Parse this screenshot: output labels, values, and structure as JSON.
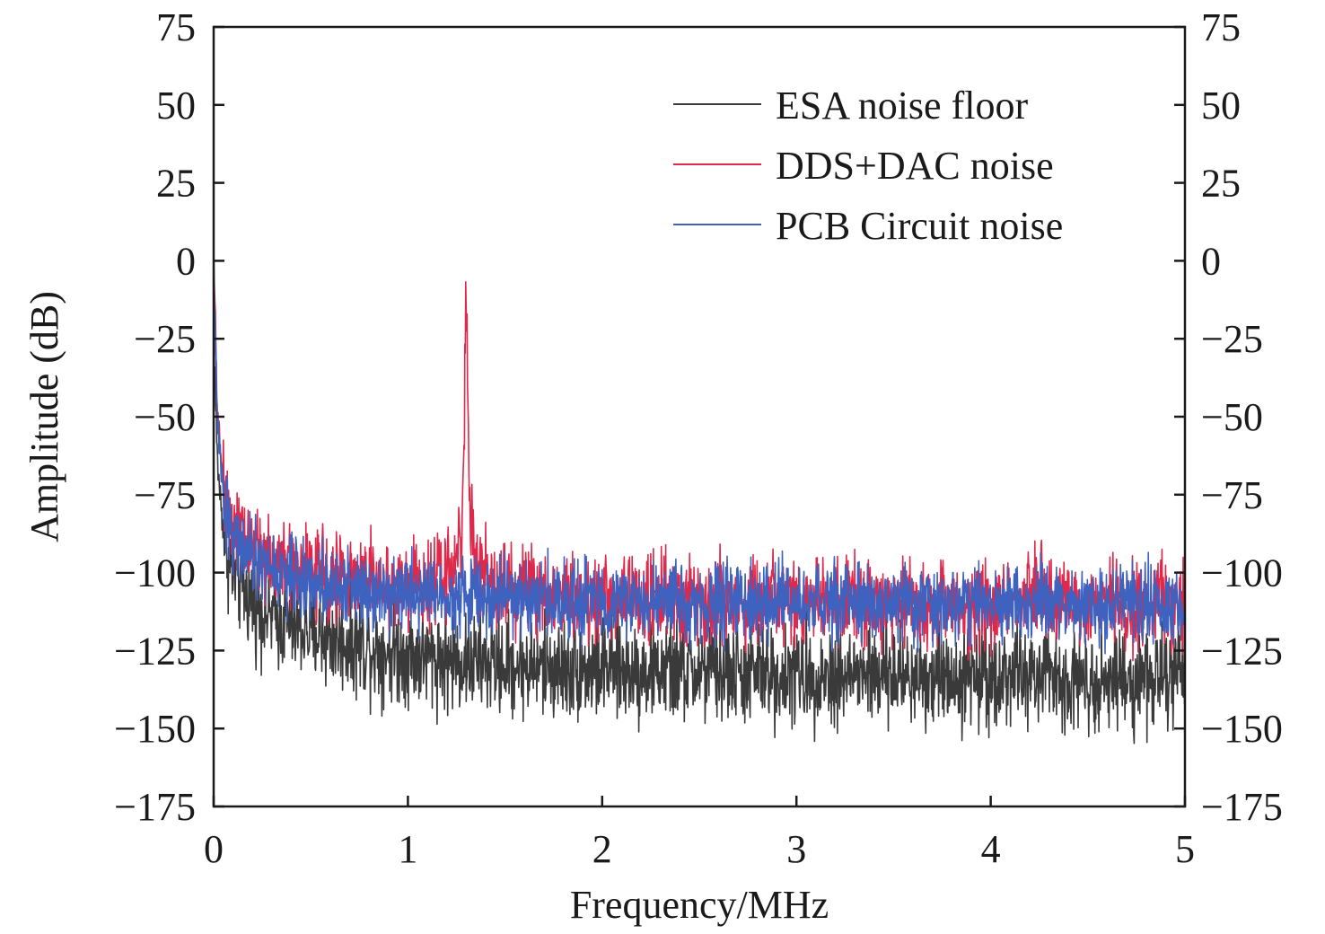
{
  "chart_data": {
    "type": "line",
    "title": "",
    "xlabel": "Frequency/MHz",
    "ylabel": "Amplitude (dB)",
    "xlim": [
      0,
      5
    ],
    "ylim": [
      -175,
      75
    ],
    "x_ticks": [
      0,
      1,
      2,
      3,
      4,
      5
    ],
    "x_tick_labels": [
      "0",
      "1",
      "2",
      "3",
      "4",
      "5"
    ],
    "y_ticks": [
      75,
      50,
      25,
      0,
      -25,
      -50,
      -75,
      -100,
      -125,
      -150,
      -175
    ],
    "y_tick_labels": [
      "75",
      "50",
      "25",
      "0",
      "−25",
      "−50",
      "−75",
      "−100",
      "−125",
      "−150",
      "−175"
    ],
    "right_y_tick_labels": [
      "75",
      "50",
      "25",
      "0",
      "−25",
      "−50",
      "−75",
      "−100",
      "−125",
      "−150",
      "−175"
    ],
    "grid": false,
    "legend_position": "top-right",
    "series": [
      {
        "name": "ESA noise floor",
        "color": "#3a3a3a",
        "x": [
          0.0,
          0.01,
          0.02,
          0.04,
          0.06,
          0.08,
          0.1,
          0.15,
          0.2,
          0.3,
          0.4,
          0.5,
          0.6,
          0.8,
          1.0,
          1.2,
          1.4,
          1.6,
          1.8,
          2.0,
          2.5,
          3.0,
          3.5,
          4.0,
          4.5,
          5.0
        ],
        "y": [
          -20,
          -45,
          -65,
          -80,
          -90,
          -96,
          -100,
          -105,
          -109,
          -114,
          -117,
          -119,
          -121,
          -124,
          -126,
          -128,
          -129,
          -130,
          -131,
          -131,
          -132,
          -133,
          -133,
          -133,
          -134,
          -134
        ],
        "noise_amplitude": 8
      },
      {
        "name": "DDS+DAC noise",
        "color": "#e0284a",
        "x": [
          0.0,
          0.01,
          0.02,
          0.04,
          0.06,
          0.08,
          0.1,
          0.15,
          0.2,
          0.3,
          0.4,
          0.5,
          0.6,
          0.8,
          1.0,
          1.1,
          1.2,
          1.25,
          1.28,
          1.3,
          1.32,
          1.35,
          1.4,
          1.5,
          1.6,
          1.8,
          2.0,
          2.5,
          3.0,
          3.5,
          4.0,
          4.2,
          4.5,
          5.0
        ],
        "y": [
          2,
          -25,
          -50,
          -65,
          -75,
          -80,
          -84,
          -89,
          -92,
          -96,
          -98,
          -100,
          -101,
          -103,
          -104,
          -103,
          -100,
          -96,
          -85,
          -11,
          -82,
          -97,
          -101,
          -103,
          -105,
          -107,
          -108,
          -109,
          -110,
          -110,
          -110,
          -107,
          -110,
          -110
        ],
        "noise_amplitude": 7
      },
      {
        "name": "PCB Circuit noise",
        "color": "#3e62bf",
        "x": [
          0.0,
          0.01,
          0.02,
          0.04,
          0.06,
          0.08,
          0.1,
          0.15,
          0.2,
          0.3,
          0.4,
          0.5,
          0.6,
          0.8,
          1.0,
          1.2,
          1.4,
          1.6,
          1.8,
          2.0,
          2.5,
          3.0,
          3.5,
          4.0,
          4.5,
          5.0
        ],
        "y": [
          0,
          -28,
          -52,
          -68,
          -78,
          -84,
          -88,
          -93,
          -96,
          -99,
          -101,
          -103,
          -104,
          -105,
          -106,
          -107,
          -108,
          -108,
          -109,
          -109,
          -110,
          -110,
          -110,
          -110,
          -110,
          -110
        ],
        "noise_amplitude": 6
      }
    ]
  }
}
